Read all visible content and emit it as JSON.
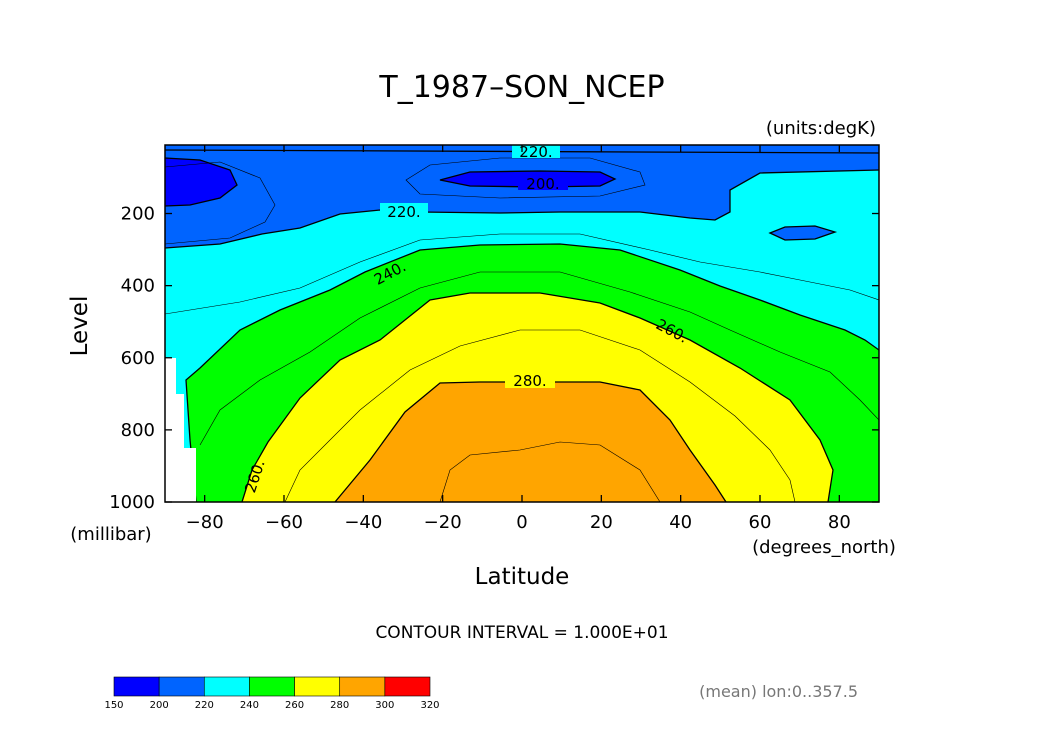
{
  "chart_data": {
    "type": "contour",
    "title": "T_1987–SON_NCEP",
    "units_label": "(units:degK)",
    "xlabel": "Latitude",
    "ylabel": "Level",
    "x_units_label": "(degrees_north)",
    "y_units_label": "(millibar)",
    "xlim": [
      -90,
      90
    ],
    "ylim": [
      1000,
      10
    ],
    "x_ticks": [
      -80,
      -60,
      -40,
      -20,
      0,
      20,
      40,
      60,
      80
    ],
    "x_tick_labels": [
      "−80",
      "−60",
      "−40",
      "−20",
      "0",
      "20",
      "40",
      "60",
      "80"
    ],
    "y_ticks": [
      200,
      400,
      600,
      800,
      1000
    ],
    "y_tick_labels": [
      "200",
      "400",
      "600",
      "800",
      "1000"
    ],
    "contour_interval_text": "CONTOUR INTERVAL = 1.000E+01",
    "mean_note": "(mean) lon:0..357.5",
    "contour_labels": [
      "220.",
      "200.",
      "220.",
      "240.",
      "260.",
      "280.",
      "260."
    ],
    "colorbar": {
      "ticks": [
        "150",
        "200",
        "220",
        "240",
        "260",
        "280",
        "300",
        "320"
      ],
      "bands": [
        {
          "from": 150,
          "to": 200,
          "color": "#0000ff"
        },
        {
          "from": 200,
          "to": 220,
          "color": "#0064ff"
        },
        {
          "from": 220,
          "to": 240,
          "color": "#00ffff"
        },
        {
          "from": 240,
          "to": 260,
          "color": "#00ff00"
        },
        {
          "from": 260,
          "to": 280,
          "color": "#ffff00"
        },
        {
          "from": 280,
          "to": 300,
          "color": "#ffa500"
        },
        {
          "from": 300,
          "to": 320,
          "color": "#ff0000"
        }
      ]
    },
    "filled_regions": [
      {
        "range": "220-240",
        "color": "#00ffff",
        "extent": "lat -86..90, 10..620 mb"
      },
      {
        "range": "240-260",
        "color": "#00ff00",
        "extent": "lat -83..90, ~290..1000 mb"
      },
      {
        "range": "260-280",
        "color": "#ffff00",
        "extent": "lat -71..78, ~420..1000 mb"
      },
      {
        "range": "280-300",
        "color": "#ffa500",
        "extent": "lat -47..51, ~660..1000 mb"
      },
      {
        "range": "200-220",
        "color": "#0064ff",
        "extent": "upper troposphere / stratosphere 10..~330 mb"
      },
      {
        "range": "<200",
        "color": "#0000ff",
        "extent": "lat -90..-72 and -30..25, 10..~180 mb"
      }
    ]
  }
}
